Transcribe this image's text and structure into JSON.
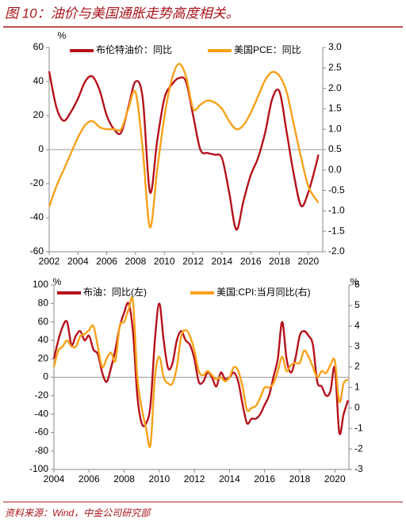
{
  "title": "图 10：油价与美国通胀走势高度相关。",
  "source": "资料来源：Wind，中金公司研究部",
  "chart_data": [
    {
      "type": "line",
      "ylabel": "%",
      "x": [
        2002,
        2002.5,
        2003,
        2003.5,
        2004,
        2004.5,
        2005,
        2005.5,
        2006,
        2006.5,
        2007,
        2007.5,
        2008,
        2008.5,
        2009,
        2009.5,
        2010,
        2010.5,
        2011,
        2011.5,
        2012,
        2012.5,
        2013,
        2013.5,
        2014,
        2014.5,
        2015,
        2015.5,
        2016,
        2016.5,
        2017,
        2017.5,
        2018,
        2018.5,
        2019,
        2019.5,
        2020,
        2020.5,
        2020.7
      ],
      "series": [
        {
          "name": "布伦特油价：同比",
          "color": "#b5121b",
          "values": [
            46,
            25,
            17,
            22,
            30,
            40,
            43,
            35,
            20,
            12,
            10,
            25,
            40,
            30,
            -25,
            5,
            30,
            38,
            42,
            40,
            20,
            0,
            -2,
            -3,
            -5,
            -25,
            -47,
            -30,
            -15,
            -5,
            10,
            30,
            34,
            10,
            -15,
            -33,
            -25,
            -10,
            -3
          ]
        },
        {
          "name": "美国PCE：同比",
          "color": "#f7a11a",
          "axis": "y2",
          "values": [
            -0.9,
            -0.4,
            0.0,
            0.4,
            0.8,
            1.1,
            1.2,
            1.05,
            1.0,
            1.0,
            1.0,
            1.5,
            1.9,
            0.5,
            -1.4,
            0.0,
            1.3,
            2.2,
            2.6,
            2.3,
            1.5,
            1.6,
            1.7,
            1.65,
            1.5,
            1.2,
            1.0,
            1.1,
            1.4,
            1.8,
            2.2,
            2.4,
            2.3,
            1.9,
            1.1,
            0.3,
            -0.4,
            -0.7,
            -0.8
          ]
        }
      ],
      "xlim": [
        2002,
        2021
      ],
      "xticks": [
        2002,
        2004,
        2006,
        2008,
        2010,
        2012,
        2014,
        2016,
        2018,
        2020
      ],
      "ylim": [
        -60,
        60
      ],
      "yticks": [
        60,
        40,
        20,
        0,
        -20,
        -40,
        -60
      ],
      "y2lim": [
        -2,
        3
      ],
      "y2ticks": [
        {
          "value": 3,
          "label": "3.0"
        },
        {
          "value": 2.5,
          "label": "2.5"
        },
        {
          "value": 2,
          "label": "2.0"
        },
        {
          "value": 1.5,
          "label": "1.5"
        },
        {
          "value": 1,
          "label": "1.0"
        },
        {
          "value": 0.5,
          "label": "0.5"
        },
        {
          "value": 0,
          "label": "0.0"
        },
        {
          "value": -0.5,
          "label": "-0.5"
        },
        {
          "value": -1,
          "label": "-1.0"
        },
        {
          "value": -1.5,
          "label": "-1.5"
        },
        {
          "value": -2,
          "label": "-2.0"
        }
      ]
    },
    {
      "type": "line",
      "ylabel": "%",
      "y2label": "%",
      "x": [
        2004,
        2004.25,
        2004.5,
        2004.75,
        2005,
        2005.25,
        2005.5,
        2005.75,
        2006,
        2006.25,
        2006.5,
        2006.75,
        2007,
        2007.25,
        2007.5,
        2007.75,
        2008,
        2008.25,
        2008.5,
        2008.75,
        2009,
        2009.25,
        2009.5,
        2009.75,
        2010,
        2010.25,
        2010.5,
        2010.75,
        2011,
        2011.25,
        2011.5,
        2011.75,
        2012,
        2012.25,
        2012.5,
        2012.75,
        2013,
        2013.25,
        2013.5,
        2013.75,
        2014,
        2014.25,
        2014.5,
        2014.75,
        2015,
        2015.25,
        2015.5,
        2015.75,
        2016,
        2016.25,
        2016.5,
        2016.75,
        2017,
        2017.25,
        2017.5,
        2017.75,
        2018,
        2018.25,
        2018.5,
        2018.75,
        2019,
        2019.25,
        2019.5,
        2019.75,
        2020,
        2020.25,
        2020.5,
        2020.75
      ],
      "series": [
        {
          "name": "布油：同比(左)",
          "color": "#b5121b",
          "values": [
            20,
            40,
            55,
            60,
            35,
            45,
            50,
            40,
            45,
            30,
            25,
            5,
            -5,
            10,
            30,
            55,
            70,
            80,
            50,
            -20,
            -50,
            -50,
            -30,
            40,
            80,
            40,
            10,
            15,
            40,
            50,
            40,
            35,
            20,
            -5,
            -5,
            5,
            0,
            -10,
            5,
            -2,
            0,
            5,
            -5,
            -30,
            -50,
            -45,
            -45,
            -40,
            -30,
            -20,
            0,
            20,
            60,
            20,
            5,
            20,
            45,
            50,
            45,
            35,
            -5,
            -10,
            -20,
            -15,
            10,
            -60,
            -40,
            -25
          ]
        },
        {
          "name": "美国:CPI:当月同比(右)",
          "color": "#f7a11a",
          "axis": "y2",
          "values": [
            2.0,
            2.8,
            3.0,
            3.3,
            3.0,
            3.0,
            3.5,
            3.6,
            3.8,
            4.0,
            3.0,
            2.0,
            2.4,
            2.7,
            2.3,
            4.0,
            4.2,
            4.8,
            5.2,
            1.5,
            0.0,
            -1.0,
            -1.8,
            1.5,
            2.5,
            1.5,
            1.2,
            1.2,
            2.0,
            3.5,
            3.8,
            3.5,
            2.8,
            1.8,
            1.6,
            1.8,
            1.6,
            1.4,
            1.5,
            1.3,
            1.5,
            2.0,
            1.8,
            1.0,
            -0.1,
            0.0,
            0.1,
            0.5,
            1.0,
            1.0,
            1.2,
            1.8,
            2.5,
            1.8,
            2.1,
            2.2,
            2.2,
            2.8,
            2.5,
            2.0,
            1.5,
            1.8,
            1.7,
            2.1,
            2.3,
            0.3,
            1.2,
            1.4
          ]
        }
      ],
      "xlim": [
        2004,
        2020.8
      ],
      "xticks": [
        2004,
        2006,
        2008,
        2010,
        2012,
        2014,
        2016,
        2018,
        2020
      ],
      "ylim": [
        -100,
        100
      ],
      "yticks": [
        100,
        80,
        60,
        40,
        20,
        0,
        -20,
        -40,
        -60,
        -80,
        -100
      ],
      "y2lim": [
        -3,
        6
      ],
      "y2ticks": [
        6,
        5,
        4,
        3,
        2,
        1,
        0,
        -1,
        -2,
        -3
      ]
    }
  ]
}
